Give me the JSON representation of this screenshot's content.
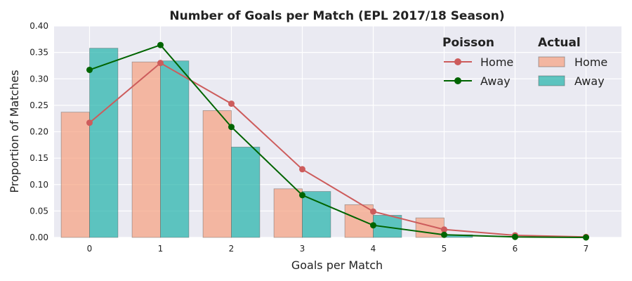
{
  "chart_data": {
    "type": "bar",
    "title": "Number of Goals per Match (EPL 2017/18 Season)",
    "xlabel": "Goals per Match",
    "ylabel": "Proportion of Matches",
    "x": [
      0,
      1,
      2,
      3,
      4,
      5,
      6,
      7
    ],
    "xlim": [
      -0.5,
      7.5
    ],
    "ylim": [
      0,
      0.4
    ],
    "yticks": [
      0.0,
      0.05,
      0.1,
      0.15,
      0.2,
      0.25,
      0.3,
      0.35,
      0.4
    ],
    "ytick_labels": [
      "0.00",
      "0.05",
      "0.10",
      "0.15",
      "0.20",
      "0.25",
      "0.30",
      "0.35",
      "0.40"
    ],
    "xtick_labels": [
      "0",
      "1",
      "2",
      "3",
      "4",
      "5",
      "6",
      "7"
    ],
    "grid": true,
    "bars": [
      {
        "name": "Home",
        "group": "Actual",
        "color": "#f7a07f",
        "x": [
          0,
          1,
          2,
          3,
          4,
          5
        ],
        "values": [
          0.237,
          0.332,
          0.24,
          0.092,
          0.062,
          0.037
        ]
      },
      {
        "name": "Away",
        "group": "Actual",
        "color": "#20b2aa",
        "x": [
          0,
          1,
          2,
          3,
          4,
          5
        ],
        "values": [
          0.358,
          0.334,
          0.171,
          0.087,
          0.042,
          0.005
        ]
      }
    ],
    "lines": [
      {
        "name": "Home",
        "group": "Poisson",
        "color": "#cd5c5c",
        "x": [
          0,
          1,
          2,
          3,
          4,
          5,
          6,
          7
        ],
        "values": [
          0.217,
          0.33,
          0.253,
          0.129,
          0.049,
          0.015,
          0.004,
          0.001
        ]
      },
      {
        "name": "Away",
        "group": "Poisson",
        "color": "#006400",
        "x": [
          0,
          1,
          2,
          3,
          4,
          5,
          6,
          7
        ],
        "values": [
          0.317,
          0.364,
          0.209,
          0.08,
          0.023,
          0.005,
          0.001,
          0.0
        ]
      }
    ],
    "legend": {
      "placement": "top-right",
      "poisson_title": "Poisson",
      "actual_title": "Actual"
    }
  }
}
